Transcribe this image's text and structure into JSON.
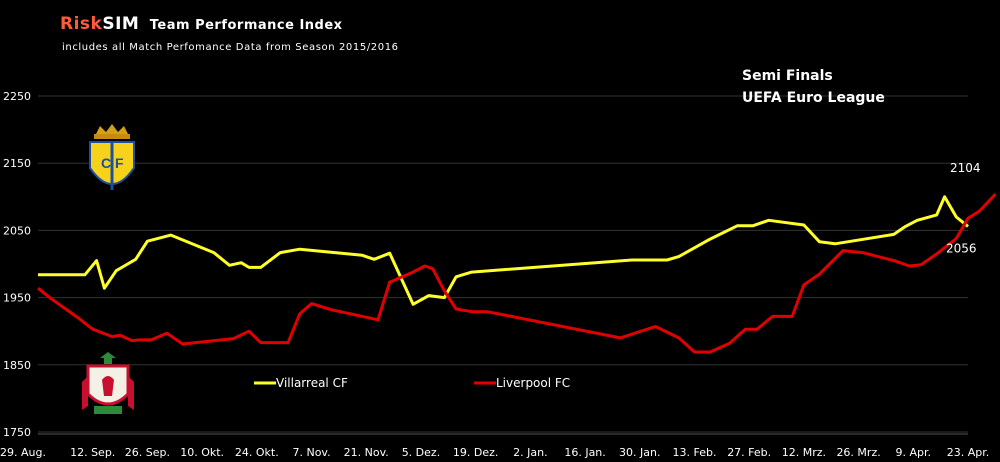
{
  "header": {
    "brand_risk": "Risk",
    "brand_sim": "SIM",
    "title_rest": "Team Performance Index",
    "subtitle": "includes all Match Perfomance Data from Season 2015/2016"
  },
  "annotation": {
    "line1": "Semi Finals",
    "line2": "UEFA Euro League"
  },
  "colors": {
    "villarreal": "#ffff2a",
    "liverpool": "#e00000",
    "background": "#000000",
    "grid": "#333333"
  },
  "chart_data": {
    "type": "line",
    "title": "",
    "xlabel": "",
    "ylabel": "",
    "ylim": [
      1750,
      2250
    ],
    "yticks": [
      1750,
      1850,
      1950,
      2050,
      2150,
      2250
    ],
    "grid": true,
    "legend_position": "bottom-center",
    "xlim": [
      "2015-08-29",
      "2016-04-23"
    ],
    "x_tick_labels": [
      {
        "date": "2015-08-29",
        "label": "29. Aug."
      },
      {
        "date": "2015-09-12",
        "label": "12. Sep."
      },
      {
        "date": "2015-09-26",
        "label": "26. Sep."
      },
      {
        "date": "2015-10-10",
        "label": "10. Okt."
      },
      {
        "date": "2015-10-24",
        "label": "24. Okt."
      },
      {
        "date": "2015-11-07",
        "label": "7. Nov."
      },
      {
        "date": "2015-11-21",
        "label": "21. Nov."
      },
      {
        "date": "2015-12-05",
        "label": "5. Dez."
      },
      {
        "date": "2015-12-19",
        "label": "19. Dez."
      },
      {
        "date": "2016-01-02",
        "label": "2. Jan."
      },
      {
        "date": "2016-01-16",
        "label": "16. Jan."
      },
      {
        "date": "2016-01-30",
        "label": "30. Jan."
      },
      {
        "date": "2016-02-13",
        "label": "13. Feb."
      },
      {
        "date": "2016-02-27",
        "label": "27. Feb."
      },
      {
        "date": "2016-03-12",
        "label": "12. Mrz."
      },
      {
        "date": "2016-03-26",
        "label": "26. Mrz."
      },
      {
        "date": "2016-04-09",
        "label": "9. Apr."
      },
      {
        "date": "2016-04-23",
        "label": "23. Apr."
      }
    ],
    "series": [
      {
        "name": "Villarreal CF",
        "color": "#ffff2a",
        "end_label": "2056",
        "points": [
          [
            "2015-08-29",
            1984
          ],
          [
            "2015-09-10",
            1984
          ],
          [
            "2015-09-13",
            2005
          ],
          [
            "2015-09-15",
            1964
          ],
          [
            "2015-09-18",
            1990
          ],
          [
            "2015-09-23",
            2007
          ],
          [
            "2015-09-26",
            2034
          ],
          [
            "2015-10-02",
            2043
          ],
          [
            "2015-10-13",
            2017
          ],
          [
            "2015-10-17",
            1998
          ],
          [
            "2015-10-20",
            2002
          ],
          [
            "2015-10-22",
            1995
          ],
          [
            "2015-10-25",
            1995
          ],
          [
            "2015-10-30",
            2017
          ],
          [
            "2015-11-04",
            2022
          ],
          [
            "2015-11-20",
            2013
          ],
          [
            "2015-11-23",
            2007
          ],
          [
            "2015-11-27",
            2016
          ],
          [
            "2015-12-03",
            1940
          ],
          [
            "2015-12-07",
            1953
          ],
          [
            "2015-12-11",
            1950
          ],
          [
            "2015-12-14",
            1981
          ],
          [
            "2015-12-18",
            1988
          ],
          [
            "2016-01-28",
            2006
          ],
          [
            "2016-02-06",
            2006
          ],
          [
            "2016-02-09",
            2011
          ],
          [
            "2016-02-17",
            2037
          ],
          [
            "2016-02-24",
            2057
          ],
          [
            "2016-02-28",
            2057
          ],
          [
            "2016-03-03",
            2065
          ],
          [
            "2016-03-12",
            2058
          ],
          [
            "2016-03-16",
            2033
          ],
          [
            "2016-03-20",
            2030
          ],
          [
            "2016-04-04",
            2044
          ],
          [
            "2016-04-07",
            2056
          ],
          [
            "2016-04-10",
            2065
          ],
          [
            "2016-04-15",
            2073
          ],
          [
            "2016-04-17",
            2100
          ],
          [
            "2016-04-20",
            2070
          ],
          [
            "2016-04-23",
            2056
          ]
        ]
      },
      {
        "name": "Liverpool FC",
        "color": "#e00000",
        "end_label": "2104",
        "points": [
          [
            "2015-08-29",
            1964
          ],
          [
            "2015-09-01",
            1950
          ],
          [
            "2015-09-08",
            1921
          ],
          [
            "2015-09-12",
            1903
          ],
          [
            "2015-09-17",
            1892
          ],
          [
            "2015-09-19",
            1894
          ],
          [
            "2015-09-22",
            1886
          ],
          [
            "2015-09-24",
            1887
          ],
          [
            "2015-09-27",
            1887
          ],
          [
            "2015-10-01",
            1897
          ],
          [
            "2015-10-05",
            1881
          ],
          [
            "2015-10-18",
            1889
          ],
          [
            "2015-10-22",
            1900
          ],
          [
            "2015-10-25",
            1883
          ],
          [
            "2015-11-01",
            1883
          ],
          [
            "2015-11-04",
            1926
          ],
          [
            "2015-11-07",
            1941
          ],
          [
            "2015-11-12",
            1932
          ],
          [
            "2015-11-24",
            1917
          ],
          [
            "2015-11-27",
            1973
          ],
          [
            "2015-12-03",
            1988
          ],
          [
            "2015-12-06",
            1997
          ],
          [
            "2015-12-08",
            1993
          ],
          [
            "2015-12-11",
            1960
          ],
          [
            "2015-12-14",
            1933
          ],
          [
            "2015-12-18",
            1929
          ],
          [
            "2015-12-22",
            1929
          ],
          [
            "2016-01-25",
            1890
          ],
          [
            "2016-02-03",
            1907
          ],
          [
            "2016-02-09",
            1890
          ],
          [
            "2016-02-13",
            1869
          ],
          [
            "2016-02-17",
            1869
          ],
          [
            "2016-02-22",
            1882
          ],
          [
            "2016-02-26",
            1903
          ],
          [
            "2016-02-29",
            1903
          ],
          [
            "2016-03-04",
            1922
          ],
          [
            "2016-03-09",
            1922
          ],
          [
            "2016-03-12",
            1969
          ],
          [
            "2016-03-16",
            1985
          ],
          [
            "2016-03-22",
            2020
          ],
          [
            "2016-03-27",
            2017
          ],
          [
            "2016-04-04",
            2005
          ],
          [
            "2016-04-08",
            1997
          ],
          [
            "2016-04-11",
            1999
          ],
          [
            "2016-04-15",
            2015
          ],
          [
            "2016-04-20",
            2038
          ],
          [
            "2016-04-23",
            2068
          ],
          [
            "2016-04-26",
            2079
          ],
          [
            "2016-04-30",
            2104
          ]
        ]
      }
    ]
  }
}
